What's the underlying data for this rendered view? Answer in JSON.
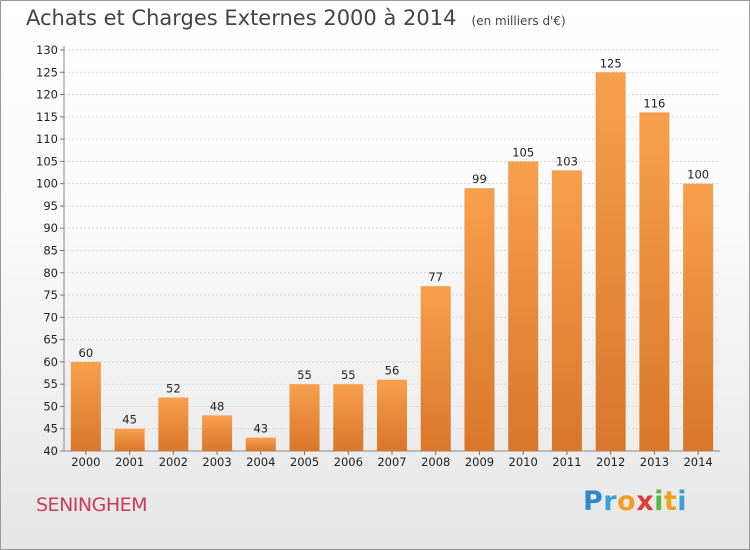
{
  "header": {
    "title": "Achats et Charges Externes 2000 à 2014",
    "subtitle": "(en milliers d'€)"
  },
  "chart_data": {
    "type": "bar",
    "title": "Achats et Charges Externes 2000 à 2014",
    "subtitle": "(en milliers d'€)",
    "categories": [
      "2000",
      "2001",
      "2002",
      "2003",
      "2004",
      "2005",
      "2006",
      "2007",
      "2008",
      "2009",
      "2010",
      "2011",
      "2012",
      "2013",
      "2014"
    ],
    "values": [
      60,
      45,
      52,
      48,
      43,
      55,
      55,
      56,
      77,
      99,
      105,
      103,
      125,
      116,
      100
    ],
    "ylim": [
      40,
      130
    ],
    "ytick_step": 5,
    "grid": true,
    "bar_color_light": "#f7a04c",
    "bar_color_dark": "#d9762a",
    "xlabel": "",
    "ylabel": ""
  },
  "footer": {
    "place_name": "SENINGHEM",
    "brand_letters": [
      {
        "ch": "P",
        "color": "#2f86c8"
      },
      {
        "ch": "r",
        "color": "#3aa0d8"
      },
      {
        "ch": "o",
        "color": "#f0a020"
      },
      {
        "ch": "x",
        "color": "#e23b3b"
      },
      {
        "ch": "i",
        "color": "#5cb83c"
      },
      {
        "ch": "t",
        "color": "#f0a020"
      },
      {
        "ch": "i",
        "color": "#3aa0d8"
      }
    ]
  }
}
